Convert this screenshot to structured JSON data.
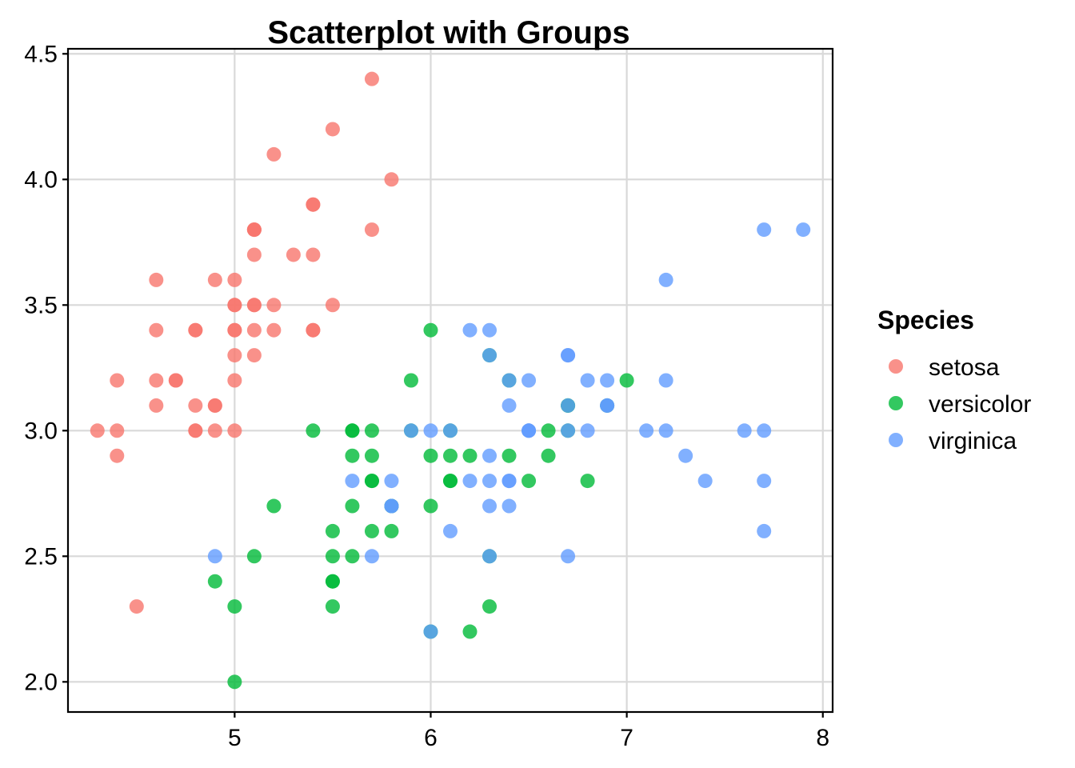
{
  "chart_data": {
    "type": "scatter",
    "title": "Scatterplot with Groups",
    "xlabel": "",
    "ylabel": "",
    "xlim": [
      4.15,
      8.05
    ],
    "ylim": [
      1.88,
      4.52
    ],
    "x_ticks": [
      5,
      6,
      7,
      8
    ],
    "y_ticks": [
      2.0,
      2.5,
      3.0,
      3.5,
      4.0,
      4.5
    ],
    "x_tick_labels": [
      "5",
      "6",
      "7",
      "8"
    ],
    "y_tick_labels": [
      "2.0",
      "2.5",
      "3.0",
      "3.5",
      "4.0",
      "4.5"
    ],
    "grid": true,
    "legend": {
      "title": "Species",
      "position": "right"
    },
    "series": [
      {
        "name": "setosa",
        "color": "#F8766D",
        "points": [
          [
            5.1,
            3.5
          ],
          [
            4.9,
            3.0
          ],
          [
            4.7,
            3.2
          ],
          [
            4.6,
            3.1
          ],
          [
            5.0,
            3.6
          ],
          [
            5.4,
            3.9
          ],
          [
            4.6,
            3.4
          ],
          [
            5.0,
            3.4
          ],
          [
            4.4,
            2.9
          ],
          [
            4.9,
            3.1
          ],
          [
            5.4,
            3.7
          ],
          [
            4.8,
            3.4
          ],
          [
            4.8,
            3.0
          ],
          [
            4.3,
            3.0
          ],
          [
            5.8,
            4.0
          ],
          [
            5.7,
            4.4
          ],
          [
            5.4,
            3.9
          ],
          [
            5.1,
            3.5
          ],
          [
            5.7,
            3.8
          ],
          [
            5.1,
            3.8
          ],
          [
            5.4,
            3.4
          ],
          [
            5.1,
            3.7
          ],
          [
            4.6,
            3.6
          ],
          [
            5.1,
            3.3
          ],
          [
            4.8,
            3.4
          ],
          [
            5.0,
            3.0
          ],
          [
            5.0,
            3.4
          ],
          [
            5.2,
            3.5
          ],
          [
            5.2,
            3.4
          ],
          [
            4.7,
            3.2
          ],
          [
            4.8,
            3.1
          ],
          [
            5.4,
            3.4
          ],
          [
            5.2,
            4.1
          ],
          [
            5.5,
            4.2
          ],
          [
            4.9,
            3.1
          ],
          [
            5.0,
            3.2
          ],
          [
            5.5,
            3.5
          ],
          [
            4.9,
            3.6
          ],
          [
            4.4,
            3.0
          ],
          [
            5.1,
            3.4
          ],
          [
            5.0,
            3.5
          ],
          [
            4.5,
            2.3
          ],
          [
            4.4,
            3.2
          ],
          [
            5.0,
            3.5
          ],
          [
            5.1,
            3.8
          ],
          [
            4.8,
            3.0
          ],
          [
            5.1,
            3.8
          ],
          [
            4.6,
            3.2
          ],
          [
            5.3,
            3.7
          ],
          [
            5.0,
            3.3
          ]
        ]
      },
      {
        "name": "versicolor",
        "color": "#00BA38",
        "points": [
          [
            7.0,
            3.2
          ],
          [
            6.4,
            3.2
          ],
          [
            6.9,
            3.1
          ],
          [
            5.5,
            2.3
          ],
          [
            6.5,
            2.8
          ],
          [
            5.7,
            2.8
          ],
          [
            6.3,
            3.3
          ],
          [
            4.9,
            2.4
          ],
          [
            6.6,
            2.9
          ],
          [
            5.2,
            2.7
          ],
          [
            5.0,
            2.0
          ],
          [
            5.9,
            3.0
          ],
          [
            6.0,
            2.2
          ],
          [
            6.1,
            2.9
          ],
          [
            5.6,
            2.9
          ],
          [
            6.7,
            3.1
          ],
          [
            5.6,
            3.0
          ],
          [
            5.8,
            2.7
          ],
          [
            6.2,
            2.2
          ],
          [
            5.6,
            2.5
          ],
          [
            5.9,
            3.2
          ],
          [
            6.1,
            2.8
          ],
          [
            6.3,
            2.5
          ],
          [
            6.1,
            2.8
          ],
          [
            6.4,
            2.9
          ],
          [
            6.6,
            3.0
          ],
          [
            6.8,
            2.8
          ],
          [
            6.7,
            3.0
          ],
          [
            6.0,
            2.9
          ],
          [
            5.7,
            2.6
          ],
          [
            5.5,
            2.4
          ],
          [
            5.5,
            2.4
          ],
          [
            5.8,
            2.7
          ],
          [
            6.0,
            2.7
          ],
          [
            5.4,
            3.0
          ],
          [
            6.0,
            3.4
          ],
          [
            6.7,
            3.1
          ],
          [
            6.3,
            2.3
          ],
          [
            5.6,
            3.0
          ],
          [
            5.5,
            2.5
          ],
          [
            5.5,
            2.6
          ],
          [
            6.1,
            3.0
          ],
          [
            5.8,
            2.6
          ],
          [
            5.0,
            2.3
          ],
          [
            5.6,
            2.7
          ],
          [
            5.7,
            3.0
          ],
          [
            5.7,
            2.9
          ],
          [
            6.2,
            2.9
          ],
          [
            5.1,
            2.5
          ],
          [
            5.7,
            2.8
          ]
        ]
      },
      {
        "name": "virginica",
        "color": "#619CFF",
        "points": [
          [
            6.3,
            3.3
          ],
          [
            5.8,
            2.7
          ],
          [
            7.1,
            3.0
          ],
          [
            6.3,
            2.9
          ],
          [
            6.5,
            3.0
          ],
          [
            7.6,
            3.0
          ],
          [
            4.9,
            2.5
          ],
          [
            7.3,
            2.9
          ],
          [
            6.7,
            2.5
          ],
          [
            7.2,
            3.6
          ],
          [
            6.5,
            3.2
          ],
          [
            6.4,
            2.7
          ],
          [
            6.8,
            3.0
          ],
          [
            5.7,
            2.5
          ],
          [
            5.8,
            2.8
          ],
          [
            6.4,
            3.2
          ],
          [
            6.5,
            3.0
          ],
          [
            7.7,
            3.8
          ],
          [
            7.7,
            2.6
          ],
          [
            6.0,
            2.2
          ],
          [
            6.9,
            3.2
          ],
          [
            5.6,
            2.8
          ],
          [
            7.7,
            2.8
          ],
          [
            6.3,
            2.7
          ],
          [
            6.7,
            3.3
          ],
          [
            7.2,
            3.2
          ],
          [
            6.2,
            2.8
          ],
          [
            6.1,
            3.0
          ],
          [
            6.4,
            2.8
          ],
          [
            7.2,
            3.0
          ],
          [
            7.4,
            2.8
          ],
          [
            7.9,
            3.8
          ],
          [
            6.4,
            2.8
          ],
          [
            6.3,
            2.8
          ],
          [
            6.1,
            2.6
          ],
          [
            7.7,
            3.0
          ],
          [
            6.3,
            3.4
          ],
          [
            6.4,
            3.1
          ],
          [
            6.0,
            3.0
          ],
          [
            6.9,
            3.1
          ],
          [
            6.7,
            3.1
          ],
          [
            6.9,
            3.1
          ],
          [
            5.8,
            2.7
          ],
          [
            6.8,
            3.2
          ],
          [
            6.7,
            3.3
          ],
          [
            6.7,
            3.0
          ],
          [
            6.3,
            2.5
          ],
          [
            6.5,
            3.0
          ],
          [
            6.2,
            3.4
          ],
          [
            5.9,
            3.0
          ]
        ]
      }
    ]
  }
}
